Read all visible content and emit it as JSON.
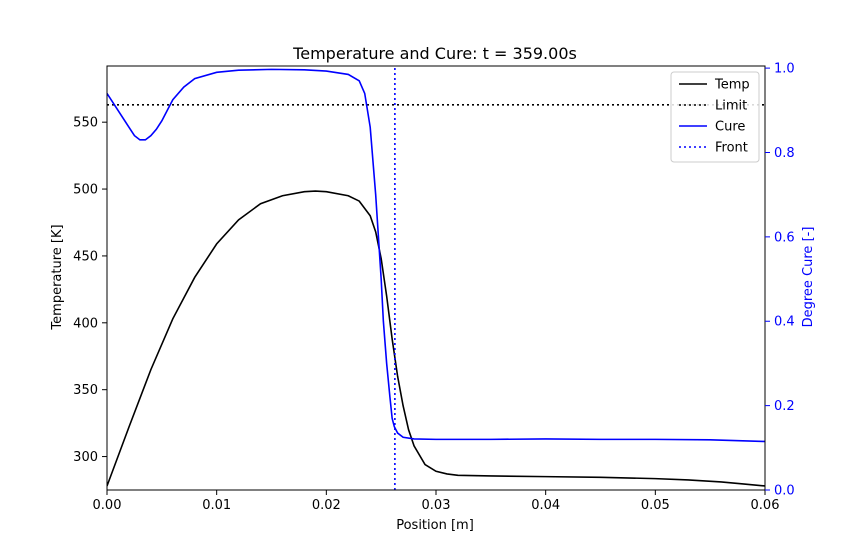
{
  "chart_data": {
    "type": "line",
    "title": "Temperature and Cure: t = 359.00s",
    "xlabel": "Position [m]",
    "ylabel": "Temperature [K]",
    "y2label": "Degree Cure [-]",
    "xlim": [
      0.0,
      0.06
    ],
    "ylim": [
      275,
      592
    ],
    "y2lim": [
      0.0,
      1.005
    ],
    "xticks": [
      "0.00",
      "0.01",
      "0.02",
      "0.03",
      "0.04",
      "0.05",
      "0.06"
    ],
    "yticks": [
      "300",
      "350",
      "400",
      "450",
      "500",
      "550"
    ],
    "y2ticks": [
      "0.0",
      "0.2",
      "0.4",
      "0.6",
      "0.8",
      "1.0"
    ],
    "grid": false,
    "legend_position": "top-right",
    "series": [
      {
        "name": "Temp",
        "axis": "left",
        "style": "solid",
        "color": "#000000",
        "x": [
          0.0,
          0.002,
          0.004,
          0.006,
          0.008,
          0.01,
          0.012,
          0.014,
          0.016,
          0.018,
          0.019,
          0.02,
          0.022,
          0.023,
          0.024,
          0.0245,
          0.025,
          0.0255,
          0.026,
          0.0265,
          0.027,
          0.0275,
          0.028,
          0.029,
          0.03,
          0.031,
          0.032,
          0.035,
          0.04,
          0.045,
          0.05,
          0.053,
          0.056,
          0.058,
          0.06
        ],
        "values": [
          278,
          322,
          365,
          403,
          434,
          459,
          477,
          489,
          495,
          498,
          498.5,
          498,
          495,
          491,
          480,
          468,
          448,
          420,
          388,
          360,
          338,
          320,
          308,
          294,
          289,
          287,
          286,
          285.5,
          285,
          284.5,
          283.5,
          282.5,
          281,
          279.5,
          278
        ]
      },
      {
        "name": "Limit",
        "axis": "left",
        "style": "dotted",
        "color": "#000000",
        "x": [
          0.0,
          0.06
        ],
        "values": [
          563,
          563
        ]
      },
      {
        "name": "Cure",
        "axis": "right",
        "style": "solid",
        "color": "#0000ff",
        "x": [
          0.0,
          0.001,
          0.002,
          0.0025,
          0.003,
          0.0035,
          0.004,
          0.0045,
          0.005,
          0.0055,
          0.006,
          0.007,
          0.008,
          0.01,
          0.012,
          0.015,
          0.018,
          0.02,
          0.022,
          0.023,
          0.0235,
          0.024,
          0.0245,
          0.025,
          0.0252,
          0.0255,
          0.0258,
          0.026,
          0.0262,
          0.0265,
          0.027,
          0.028,
          0.03,
          0.035,
          0.04,
          0.045,
          0.05,
          0.055,
          0.06
        ],
        "values": [
          0.94,
          0.9,
          0.86,
          0.84,
          0.83,
          0.83,
          0.84,
          0.855,
          0.875,
          0.9,
          0.925,
          0.955,
          0.975,
          0.99,
          0.995,
          0.997,
          0.996,
          0.993,
          0.985,
          0.97,
          0.94,
          0.86,
          0.7,
          0.5,
          0.4,
          0.3,
          0.22,
          0.17,
          0.15,
          0.135,
          0.125,
          0.121,
          0.12,
          0.12,
          0.121,
          0.12,
          0.12,
          0.119,
          0.115
        ]
      },
      {
        "name": "Front",
        "axis": "right",
        "style": "dotted",
        "color": "#0000ff",
        "x": [
          0.02625,
          0.02625
        ],
        "values": [
          0.0,
          1.005
        ]
      }
    ]
  }
}
